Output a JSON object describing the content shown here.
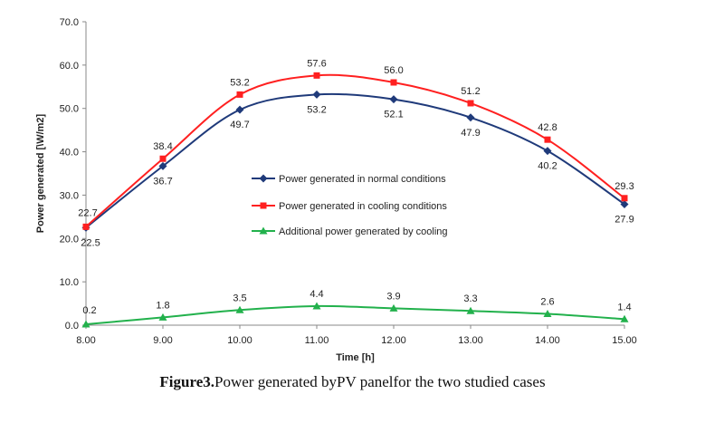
{
  "chart_data": {
    "type": "line",
    "title": "",
    "xlabel": "Time [h]",
    "ylabel": "Power generated [\\W/m2]",
    "categories": [
      "8.00",
      "9.00",
      "10.00",
      "11.00",
      "12.00",
      "13.00",
      "14.00",
      "15.00"
    ],
    "x": [
      8,
      9,
      10,
      11,
      12,
      13,
      14,
      15
    ],
    "xlim": [
      8,
      15
    ],
    "ylim": [
      0,
      70
    ],
    "ytick_labels": [
      "0.0",
      "10.0",
      "20.0",
      "30.0",
      "40.0",
      "50.0",
      "60.0",
      "70.0"
    ],
    "yticks": [
      0,
      10,
      20,
      30,
      40,
      50,
      60,
      70
    ],
    "legend_position": "center",
    "series": [
      {
        "name": "Power generated in normal conditions",
        "color": "#1f3a7a",
        "marker": "diamond",
        "values": [
          22.5,
          36.7,
          49.7,
          53.2,
          52.1,
          47.9,
          40.2,
          27.9
        ],
        "labels": [
          "22.5",
          "36.7",
          "49.7",
          "53.2",
          "52.1",
          "47.9",
          "40.2",
          "27.9"
        ]
      },
      {
        "name": "Power generated in cooling conditions",
        "color": "#ff2020",
        "marker": "square",
        "values": [
          22.7,
          38.4,
          53.2,
          57.6,
          56.0,
          51.2,
          42.8,
          29.3
        ],
        "labels": [
          "22.7",
          "38.4",
          "53.2",
          "57.6",
          "56.0",
          "51.2",
          "42.8",
          "29.3"
        ]
      },
      {
        "name": "Additional power generated by cooling",
        "color": "#22b14c",
        "marker": "triangle",
        "values": [
          0.2,
          1.8,
          3.5,
          4.4,
          3.9,
          3.3,
          2.6,
          1.4
        ],
        "labels": [
          "0.2",
          "1.8",
          "3.5",
          "4.4",
          "3.9",
          "3.3",
          "2.6",
          "1.4"
        ]
      }
    ]
  },
  "caption": {
    "label": "Figure3.",
    "text": "Power generated byPV panelfor the two studied cases"
  }
}
